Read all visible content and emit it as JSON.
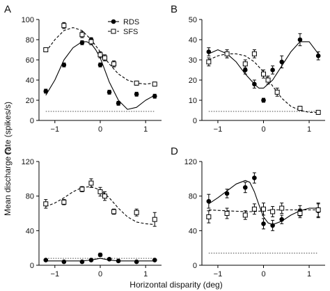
{
  "chart_data": [
    {
      "panel": "A",
      "type": "scatter",
      "xlim": [
        -1.35,
        1.35
      ],
      "ylim": [
        0,
        100
      ],
      "xticks": [
        -1,
        0,
        1
      ],
      "yticks": [
        0,
        20,
        40,
        60,
        80,
        100
      ],
      "legend": {
        "placement": "top-right",
        "entries": [
          "RDS",
          "SFS"
        ]
      },
      "series": [
        {
          "name": "RDS",
          "marker": "filled-circle",
          "x": [
            -1.2,
            -0.8,
            -0.4,
            -0.2,
            0.0,
            0.2,
            0.4,
            0.8,
            1.2
          ],
          "y": [
            29,
            55,
            77,
            80,
            55,
            28,
            17,
            26,
            24
          ],
          "err": [
            2,
            2,
            2,
            2,
            2,
            2,
            2,
            2,
            2
          ],
          "fit": {
            "line": "solid",
            "x": [
              -1.2,
              -1.0,
              -0.8,
              -0.6,
              -0.4,
              -0.3,
              -0.2,
              -0.1,
              0.0,
              0.2,
              0.4,
              0.6,
              0.8,
              1.0,
              1.2
            ],
            "y": [
              25,
              40,
              60,
              72,
              78,
              78,
              76,
              70,
              62,
              38,
              20,
              11,
              13,
              20,
              25
            ]
          }
        },
        {
          "name": "SFS",
          "marker": "open-square",
          "x": [
            -1.2,
            -0.8,
            -0.4,
            -0.2,
            0.0,
            0.1,
            0.3,
            0.8,
            1.2
          ],
          "y": [
            70,
            94,
            85,
            78,
            65,
            62,
            56,
            37,
            36
          ],
          "err": [
            2,
            3,
            3,
            3,
            3,
            3,
            3,
            2,
            2
          ],
          "fit": {
            "line": "dashed",
            "x": [
              -1.2,
              -1.0,
              -0.8,
              -0.6,
              -0.4,
              -0.2,
              0.0,
              0.2,
              0.4,
              0.6,
              0.8,
              1.0,
              1.2
            ],
            "y": [
              68,
              80,
              89,
              92,
              89,
              80,
              68,
              56,
              46,
              40,
              37,
              36,
              37
            ]
          }
        }
      ],
      "baseline": {
        "line": "dotted",
        "y": 9
      }
    },
    {
      "panel": "B",
      "type": "scatter",
      "xlim": [
        -1.35,
        1.35
      ],
      "ylim": [
        0,
        50
      ],
      "xticks": [
        -1,
        0,
        1
      ],
      "yticks": [
        0,
        10,
        20,
        30,
        40,
        50
      ],
      "series": [
        {
          "name": "RDS",
          "marker": "filled-circle",
          "x": [
            -1.2,
            -0.8,
            -0.4,
            -0.2,
            0.0,
            0.2,
            0.4,
            0.8,
            1.2
          ],
          "y": [
            34,
            33,
            25,
            18,
            10,
            25,
            29,
            40,
            32
          ],
          "err": [
            2,
            2,
            2,
            2,
            1,
            2,
            3,
            3,
            2
          ],
          "fit": {
            "line": "solid",
            "x": [
              -1.2,
              -1.0,
              -0.8,
              -0.6,
              -0.4,
              -0.2,
              -0.1,
              0.0,
              0.2,
              0.4,
              0.6,
              0.8,
              1.0,
              1.2
            ],
            "y": [
              33,
              35,
              33,
              29,
              23,
              18,
              16,
              16,
              20,
              27,
              34,
              39,
              39,
              33
            ]
          }
        },
        {
          "name": "SFS",
          "marker": "open-square",
          "x": [
            -1.2,
            -0.8,
            -0.4,
            -0.2,
            0.0,
            0.1,
            0.3,
            0.8,
            1.2
          ],
          "y": [
            29,
            33,
            28,
            33,
            23,
            20,
            14,
            6,
            4
          ],
          "err": [
            2,
            2,
            2,
            2,
            2,
            2,
            2,
            1,
            1
          ],
          "fit": {
            "line": "dashed",
            "x": [
              -1.2,
              -1.0,
              -0.8,
              -0.6,
              -0.4,
              -0.2,
              0.0,
              0.2,
              0.4,
              0.6,
              0.8,
              1.0,
              1.2
            ],
            "y": [
              30,
              32,
              33,
              33,
              32,
              29,
              24,
              17,
              11,
              7,
              5,
              4,
              4
            ]
          }
        }
      ],
      "baseline": {
        "line": "dotted",
        "y": 4.5
      }
    },
    {
      "panel": "C",
      "type": "scatter",
      "xlim": [
        -1.35,
        1.35
      ],
      "ylim": [
        0,
        120
      ],
      "xticks": [
        -1,
        0,
        1
      ],
      "yticks": [
        0,
        40,
        80,
        120
      ],
      "series": [
        {
          "name": "RDS",
          "marker": "filled-circle",
          "x": [
            -1.2,
            -0.8,
            -0.4,
            -0.2,
            0.0,
            0.2,
            0.4,
            0.8,
            1.2
          ],
          "y": [
            6,
            4,
            4,
            6,
            12,
            7,
            5,
            4,
            6
          ],
          "err": [
            1,
            1,
            1,
            1,
            2,
            1,
            1,
            1,
            1
          ],
          "fit": {
            "line": "solid",
            "x": [
              -1.2,
              -0.8,
              -0.4,
              -0.2,
              0.0,
              0.2,
              0.4,
              0.8,
              1.2
            ],
            "y": [
              5,
              5,
              5,
              6,
              8,
              6,
              5,
              5,
              5
            ]
          }
        },
        {
          "name": "SFS",
          "marker": "open-square",
          "x": [
            -1.2,
            -0.8,
            -0.4,
            -0.2,
            0.0,
            0.1,
            0.3,
            0.8,
            1.2
          ],
          "y": [
            71,
            73,
            88,
            95,
            85,
            80,
            62,
            61,
            53
          ],
          "err": [
            5,
            3,
            3,
            5,
            5,
            5,
            3,
            4,
            8
          ],
          "fit": {
            "line": "dashed",
            "x": [
              -1.2,
              -1.0,
              -0.8,
              -0.6,
              -0.4,
              -0.2,
              0.0,
              0.2,
              0.4,
              0.6,
              0.8,
              1.0,
              1.2
            ],
            "y": [
              68,
              72,
              78,
              85,
              90,
              91,
              87,
              78,
              66,
              56,
              50,
              48,
              47
            ]
          }
        }
      ],
      "baseline": {
        "line": "dotted",
        "y": 8
      }
    },
    {
      "panel": "D",
      "type": "scatter",
      "xlim": [
        -1.35,
        1.35
      ],
      "ylim": [
        0,
        120
      ],
      "xticks": [
        -1,
        0,
        1
      ],
      "yticks": [
        0,
        40,
        80,
        120
      ],
      "series": [
        {
          "name": "RDS",
          "marker": "filled-circle",
          "x": [
            -1.2,
            -0.8,
            -0.4,
            -0.2,
            0.0,
            0.2,
            0.4,
            0.8,
            1.2
          ],
          "y": [
            74,
            83,
            90,
            101,
            48,
            46,
            53,
            63,
            63
          ],
          "err": [
            8,
            5,
            6,
            6,
            6,
            6,
            5,
            6,
            8
          ],
          "fit": {
            "line": "solid",
            "x": [
              -1.2,
              -1.0,
              -0.8,
              -0.6,
              -0.4,
              -0.3,
              -0.2,
              -0.1,
              0.0,
              0.1,
              0.2,
              0.4,
              0.6,
              0.8,
              1.0,
              1.2
            ],
            "y": [
              71,
              78,
              86,
              94,
              98,
              96,
              85,
              70,
              56,
              49,
              47,
              51,
              58,
              63,
              66,
              66
            ]
          }
        },
        {
          "name": "SFS",
          "marker": "open-square",
          "x": [
            -1.2,
            -0.8,
            -0.4,
            -0.2,
            0.0,
            0.2,
            0.4,
            0.8,
            1.2
          ],
          "y": [
            56,
            60,
            58,
            65,
            65,
            62,
            66,
            60,
            64
          ],
          "err": [
            7,
            6,
            5,
            6,
            7,
            6,
            6,
            5,
            8
          ],
          "fit": {
            "line": "dashed",
            "x": [
              -1.2,
              -0.8,
              -0.4,
              -0.2,
              0.0,
              0.2,
              0.4,
              0.8,
              1.2
            ],
            "y": [
              64,
              63,
              62,
              62,
              63,
              64,
              64,
              64,
              64
            ]
          }
        }
      ],
      "baseline": {
        "line": "dotted",
        "y": 14
      }
    }
  ],
  "labels": {
    "ylabel": "Mean discharge rate (spikes/s)",
    "xlabel": "Horizontal disparity (deg)",
    "panels": [
      "A",
      "B",
      "C",
      "D"
    ]
  }
}
